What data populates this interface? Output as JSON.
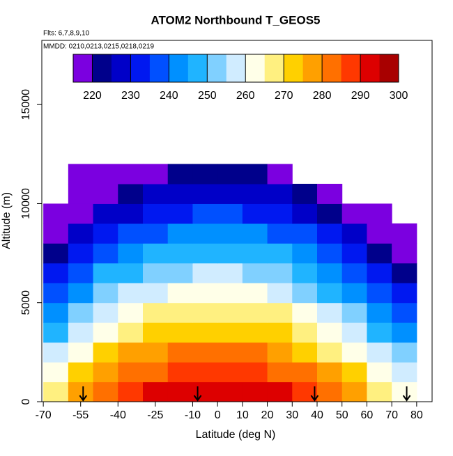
{
  "chart_data": {
    "type": "heatmap",
    "title": "ATOM2 Northbound T_GEOS5",
    "flights_note": "Flts: 6,7,8,9,10",
    "dates_note": "MMDD: 0210,0213,0215,0218,0219",
    "x_label": "Latitude (deg N)",
    "y_label": "Altitude (m)",
    "x_edges": [
      -70,
      -60,
      -50,
      -40,
      -30,
      -20,
      -10,
      0,
      10,
      20,
      30,
      40,
      50,
      60,
      70,
      80
    ],
    "y_edges": [
      0,
      1000,
      2000,
      3000,
      4000,
      5000,
      6000,
      7000,
      8000,
      9000,
      10000,
      11000,
      12000
    ],
    "z": [
      [
        269,
        277,
        284,
        288,
        291,
        293,
        294,
        294,
        293,
        291,
        287,
        282,
        277,
        269,
        263
      ],
      [
        262,
        270,
        277,
        281,
        284,
        286,
        287,
        287,
        286,
        284,
        280,
        275,
        270,
        262,
        256
      ],
      [
        256,
        264,
        271,
        275,
        278,
        280,
        281,
        281,
        280,
        278,
        274,
        269,
        264,
        256,
        250
      ],
      [
        249,
        257,
        264,
        268,
        271,
        273,
        274,
        274,
        273,
        271,
        267,
        262,
        257,
        249,
        243
      ],
      [
        243,
        251,
        258,
        262,
        265,
        267,
        268,
        268,
        267,
        265,
        261,
        256,
        251,
        243,
        237
      ],
      [
        236,
        244,
        251,
        255,
        258,
        260,
        261,
        261,
        260,
        258,
        254,
        249,
        244,
        236,
        230
      ],
      [
        230,
        238,
        245,
        249,
        252,
        254,
        255,
        255,
        254,
        252,
        248,
        243,
        238,
        230,
        224
      ],
      [
        223,
        231,
        238,
        242,
        245,
        247,
        248,
        248,
        247,
        245,
        241,
        236,
        231,
        223,
        217
      ],
      [
        217,
        225,
        232,
        236,
        239,
        241,
        242,
        242,
        241,
        239,
        235,
        230,
        225,
        217,
        215
      ],
      [
        215,
        218,
        225,
        229,
        232,
        234,
        235,
        235,
        234,
        232,
        228,
        223,
        218,
        215,
        null
      ],
      [
        null,
        215,
        219,
        223,
        226,
        228,
        229,
        229,
        228,
        226,
        222,
        217,
        null,
        null,
        null
      ],
      [
        null,
        215,
        215,
        216,
        219,
        221,
        222,
        222,
        221,
        219,
        null,
        null,
        null,
        null,
        null
      ]
    ],
    "colorbar": {
      "lim": [
        215,
        300
      ],
      "ticks": [
        220,
        230,
        240,
        250,
        260,
        270,
        280,
        290,
        300
      ]
    },
    "colors": [
      "#7b00e0",
      "#00008b",
      "#0000c8",
      "#0018f0",
      "#0050ff",
      "#0090ff",
      "#20b4ff",
      "#80d0ff",
      "#d0ecff",
      "#ffffe8",
      "#fff080",
      "#ffd000",
      "#ffa000",
      "#ff7000",
      "#ff3800",
      "#dd0000",
      "#a80000"
    ],
    "arrows_x": [
      -54,
      -8,
      39,
      76
    ],
    "xlim": [
      -70.6,
      86.2
    ],
    "ylim": [
      0,
      18240
    ],
    "xticks": [
      -70,
      -55,
      -40,
      -25,
      -10,
      0,
      10,
      20,
      30,
      40,
      50,
      60,
      70,
      80
    ],
    "yticks": [
      0,
      5000,
      10000,
      15000
    ]
  }
}
